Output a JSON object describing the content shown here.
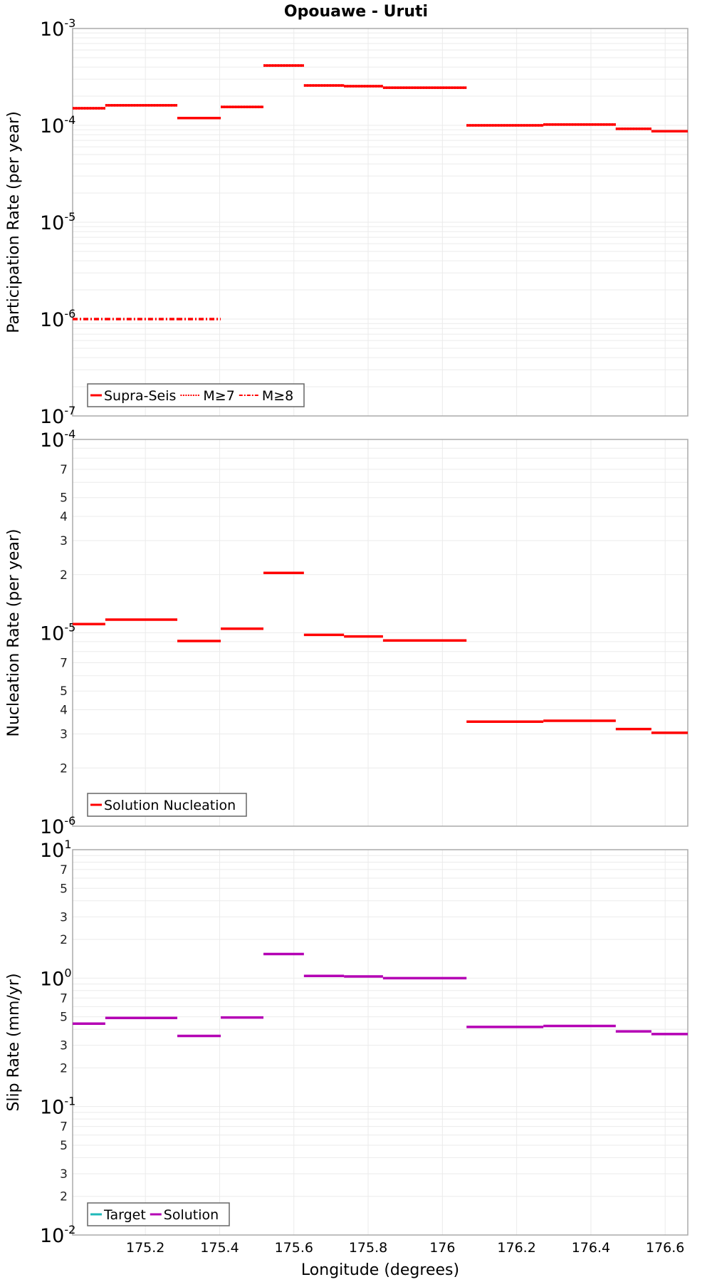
{
  "title": "Opouawe - Uruti",
  "colors": {
    "participation": "#ff0000",
    "nucleation": "#ff0000",
    "target": "#1fb8b8",
    "solution": "#b400b4",
    "grid": "#ebebeb",
    "axis": "#aaaaaa"
  },
  "x_axis": {
    "label": "Longitude (degrees)",
    "range": [
      175.004,
      176.661
    ],
    "ticks": [
      175.2,
      175.4,
      175.6,
      175.8,
      176,
      176.2,
      176.4,
      176.6
    ],
    "tick_labels": [
      "175.2",
      "175.4",
      "175.6",
      "175.8",
      "176",
      "176.2",
      "176.4",
      "176.6"
    ]
  },
  "chart_data": [
    {
      "type": "line",
      "subtype": "step-segments",
      "title": "Opouawe - Uruti",
      "xlabel": "Longitude (degrees)",
      "ylabel": "Participation Rate (per year)",
      "yscale": "log",
      "ylim": [
        1e-07,
        0.001
      ],
      "grid": true,
      "legend_position": "lower-left",
      "legend": [
        "Supra-Seis",
        "M≥7",
        "M≥8"
      ],
      "segment_edges": [
        175.004,
        175.092,
        175.286,
        175.403,
        175.518,
        175.627,
        175.735,
        175.84,
        176.065,
        176.272,
        176.467,
        176.563,
        176.661
      ],
      "series": [
        {
          "name": "Supra-Seis",
          "style": "solid",
          "color": "#ff0000",
          "values": [
            0.00015,
            0.000161,
            0.000119,
            0.000155,
            0.000415,
            0.000258,
            0.000254,
            0.000245,
            0.0001,
            0.000102,
            9.2e-05,
            8.7e-05
          ]
        },
        {
          "name": "M≥7",
          "style": "dotted",
          "color": "#ff0000",
          "values": [
            0.00015,
            0.000161,
            0.000119,
            0.000155,
            0.000415,
            0.000258,
            0.000254,
            0.000245,
            0.0001,
            0.000102,
            9.2e-05,
            8.7e-05
          ]
        },
        {
          "name": "M≥8",
          "style": "dashdot",
          "color": "#ff0000",
          "values": [
            1e-06,
            1e-06,
            1e-06,
            null,
            null,
            null,
            null,
            null,
            null,
            null,
            null,
            null
          ]
        }
      ]
    },
    {
      "type": "line",
      "subtype": "step-segments",
      "xlabel": "Longitude (degrees)",
      "ylabel": "Nucleation Rate (per year)",
      "yscale": "log",
      "ylim": [
        1e-06,
        0.0001
      ],
      "grid": true,
      "legend_position": "lower-left",
      "legend": [
        "Solution Nucleation"
      ],
      "segment_edges": [
        175.004,
        175.092,
        175.286,
        175.403,
        175.518,
        175.627,
        175.735,
        175.84,
        176.065,
        176.272,
        176.467,
        176.563,
        176.661
      ],
      "series": [
        {
          "name": "Solution Nucleation",
          "style": "solid",
          "color": "#ff0000",
          "values": [
            1.11e-05,
            1.17e-05,
            9.07e-06,
            1.05e-05,
            2.04e-05,
            9.76e-06,
            9.57e-06,
            9.13e-06,
            3.47e-06,
            3.51e-06,
            3.18e-06,
            3.04e-06
          ]
        }
      ]
    },
    {
      "type": "line",
      "subtype": "step-segments",
      "xlabel": "Longitude (degrees)",
      "ylabel": "Slip Rate (mm/yr)",
      "yscale": "log",
      "ylim": [
        0.01,
        10.0
      ],
      "grid": true,
      "legend_position": "lower-left",
      "legend": [
        "Target",
        "Solution"
      ],
      "segment_edges": [
        175.004,
        175.092,
        175.286,
        175.403,
        175.518,
        175.627,
        175.735,
        175.84,
        176.065,
        176.272,
        176.467,
        176.563,
        176.661
      ],
      "series": [
        {
          "name": "Target",
          "style": "solid",
          "color": "#1fb8b8",
          "values": []
        },
        {
          "name": "Solution",
          "style": "solid",
          "color": "#b400b4",
          "values": [
            0.442,
            0.49,
            0.355,
            0.494,
            1.54,
            1.04,
            1.03,
            1.0,
            0.417,
            0.424,
            0.385,
            0.367
          ]
        }
      ]
    }
  ],
  "panels": [
    {
      "ylabel": "Participation Rate (per year)",
      "decades": [
        -3,
        -4,
        -5,
        -6,
        -7
      ],
      "minor_labels": []
    },
    {
      "ylabel": "Nucleation Rate (per year)",
      "decades": [
        -4,
        -5,
        -6
      ],
      "minor_labels": [
        "7",
        "5",
        "4",
        "3",
        "2"
      ]
    },
    {
      "ylabel": "Slip Rate (mm/yr)",
      "decades": [
        1,
        0,
        -1,
        -2
      ],
      "minor_labels": [
        "7",
        "5",
        "3",
        "2"
      ]
    }
  ],
  "legends": [
    {
      "items": [
        {
          "label": "Supra-Seis",
          "style": "solid"
        },
        {
          "label": "M≥7",
          "style": "dotted"
        },
        {
          "label": "M≥8",
          "style": "dashdot"
        }
      ]
    },
    {
      "items": [
        {
          "label": "Solution Nucleation",
          "style": "solid"
        }
      ]
    },
    {
      "items": [
        {
          "label": "Target",
          "style": "solid"
        },
        {
          "label": "Solution",
          "style": "solid"
        }
      ]
    }
  ]
}
